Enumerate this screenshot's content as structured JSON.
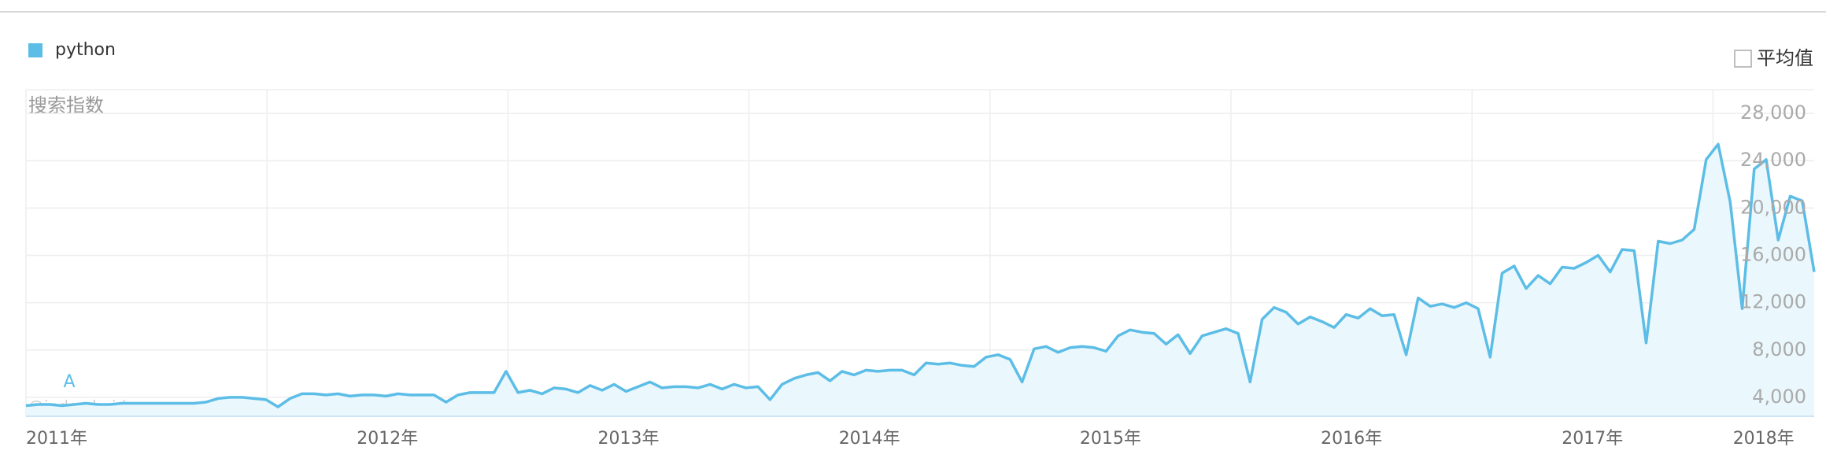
{
  "chart_data": {
    "type": "line",
    "series": [
      {
        "name": "python",
        "color": "#5cbde6",
        "fill": "#eaf7fc",
        "values": [
          3300,
          3400,
          3400,
          3300,
          3400,
          3500,
          3400,
          3400,
          3500,
          3500,
          3500,
          3500,
          3500,
          3500,
          3500,
          3600,
          3900,
          4000,
          4000,
          3900,
          3800,
          3200,
          3900,
          4300,
          4300,
          4200,
          4300,
          4100,
          4200,
          4200,
          4100,
          4300,
          4200,
          4200,
          4200,
          3600,
          4200,
          4400,
          4400,
          4400,
          6200,
          4400,
          4600,
          4300,
          4800,
          4700,
          4400,
          5000,
          4600,
          5100,
          4500,
          4900,
          5300,
          4800,
          4900,
          4900,
          4800,
          5100,
          4700,
          5100,
          4800,
          4900,
          3800,
          5100,
          5600,
          5900,
          6100,
          5400,
          6200,
          5900,
          6300,
          6200,
          6300,
          6300,
          5900,
          6900,
          6800,
          6900,
          6700,
          6600,
          7400,
          7600,
          7200,
          5300,
          8100,
          8300,
          7800,
          8200,
          8300,
          8200,
          7900,
          9200,
          9700,
          9500,
          9400,
          8500,
          9300,
          7700,
          9200,
          9500,
          9800,
          9400,
          5300,
          10600,
          11600,
          11200,
          10200,
          10800,
          10400,
          9900,
          11000,
          10700,
          11500,
          10900,
          11000,
          7600,
          12400,
          11700,
          11900,
          11600,
          12000,
          11500,
          7400,
          14500,
          15100,
          13200,
          14300,
          13600,
          15000,
          14900,
          15400,
          16000,
          14600,
          16500,
          16400,
          8600,
          17200,
          17000,
          17300,
          18200,
          24100,
          25400,
          20500,
          11500,
          23300,
          24100,
          17300,
          21000,
          20600,
          14600
        ]
      }
    ],
    "y_axis_title": "搜索指数",
    "average_toggle": "平均值",
    "annotations": [
      "A"
    ],
    "watermark": "@index.baidu.com",
    "ylim": [
      2400,
      30000
    ],
    "yticks": [
      {
        "value": 4000,
        "label": "4,000"
      },
      {
        "value": 8000,
        "label": "8,000"
      },
      {
        "value": 12000,
        "label": "12,000"
      },
      {
        "value": 16000,
        "label": "16,000"
      },
      {
        "value": 20000,
        "label": "20,000"
      },
      {
        "value": 24000,
        "label": "24,000"
      },
      {
        "value": 28000,
        "label": "28,000"
      }
    ],
    "xlim": [
      2011,
      2018.42
    ],
    "xticks": [
      {
        "value": 2011,
        "label": "2011年"
      },
      {
        "value": 2012,
        "label": "2012年"
      },
      {
        "value": 2013,
        "label": "2013年"
      },
      {
        "value": 2014,
        "label": "2014年"
      },
      {
        "value": 2015,
        "label": "2015年"
      },
      {
        "value": 2016,
        "label": "2016年"
      },
      {
        "value": 2017,
        "label": "2017年"
      },
      {
        "value": 2018,
        "label": "2018年"
      }
    ],
    "grid": true
  }
}
